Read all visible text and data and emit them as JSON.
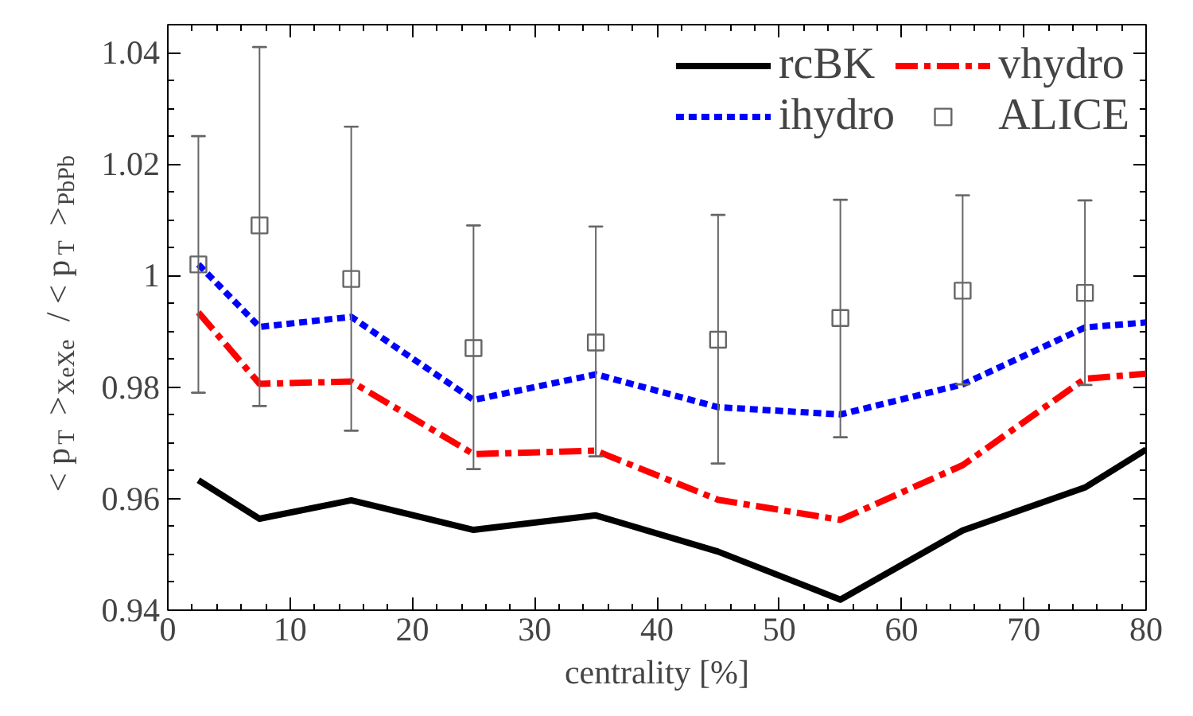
{
  "chart_data": {
    "type": "line",
    "xlabel": "centrality [%]",
    "ylabel": "< p$_{T}$ >$_{XeXe}$ / < p$_{T}$ >$_{PbPb}$",
    "xlim": [
      0,
      80
    ],
    "xticks": [
      0,
      10,
      20,
      30,
      40,
      50,
      60,
      70,
      80
    ],
    "ylim": [
      0.94,
      1.045
    ],
    "yticks": [
      0.94,
      0.96,
      0.98,
      1,
      1.02,
      1.04
    ],
    "x": [
      2.5,
      7.5,
      15,
      25,
      35,
      45,
      55,
      65,
      75,
      80
    ],
    "grid": false,
    "legend": "top right",
    "series": [
      {
        "name": "rcBK",
        "color": "#000000",
        "line_style": "solid",
        "values": [
          0.9633,
          0.9564,
          0.9597,
          0.9544,
          0.957,
          0.9505,
          0.9419,
          0.9543,
          0.962,
          0.9688
        ]
      },
      {
        "name": "ihydro",
        "color": "#0000ff",
        "line_style": "dotted",
        "values": [
          1.002,
          0.9908,
          0.9926,
          0.9777,
          0.9823,
          0.9764,
          0.9751,
          0.9805,
          0.9907,
          0.9916
        ]
      },
      {
        "name": "vhydro",
        "color": "#ff0000",
        "line_style": "dashed",
        "values": [
          0.9934,
          0.9806,
          0.981,
          0.968,
          0.9686,
          0.9598,
          0.9562,
          0.966,
          0.9815,
          0.9824
        ]
      },
      {
        "name": "ALICE",
        "type": "scatter",
        "marker": "square",
        "color": "#666666",
        "x": [
          2.5,
          7.5,
          15,
          25,
          35,
          45,
          55,
          65,
          75
        ],
        "values": [
          1.002,
          1.009,
          0.9994,
          0.987,
          0.988,
          0.9885,
          0.9924,
          0.9973,
          0.9969
        ],
        "errors": [
          [
            0.979,
            1.025
          ],
          [
            0.9766,
            1.041
          ],
          [
            0.9722,
            1.0267
          ],
          [
            0.9653,
            1.009
          ],
          [
            0.9676,
            1.0088
          ],
          [
            0.9663,
            1.0109
          ],
          [
            0.971,
            1.0136
          ],
          [
            0.9805,
            1.0144
          ],
          [
            0.9804,
            1.0135
          ]
        ]
      }
    ]
  }
}
